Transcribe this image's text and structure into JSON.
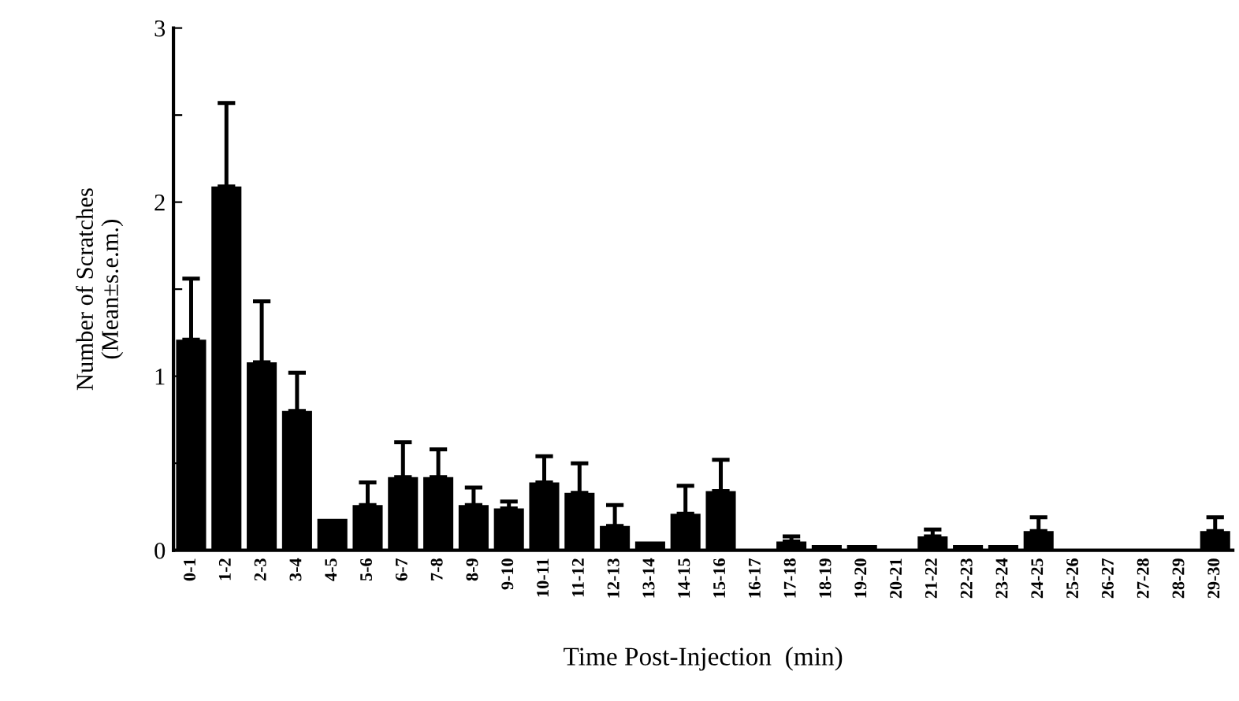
{
  "chart_data": {
    "type": "bar",
    "xlabel": "Time Post-Injection  (min)",
    "ylabel": "Number of Scratches\n(Mean±s.e.m.)",
    "categories": [
      "0-1",
      "1-2",
      "2-3",
      "3-4",
      "4-5",
      "5-6",
      "6-7",
      "7-8",
      "8-9",
      "9-10",
      "10-11",
      "11-12",
      "12-13",
      "13-14",
      "14-15",
      "15-16",
      "16-17",
      "17-18",
      "18-19",
      "19-20",
      "20-21",
      "21-22",
      "22-23",
      "23-24",
      "24-25",
      "25-26",
      "26-27",
      "27-28",
      "28-29",
      "29-30"
    ],
    "values": [
      1.21,
      2.09,
      1.08,
      0.8,
      0.18,
      0.26,
      0.42,
      0.42,
      0.26,
      0.24,
      0.39,
      0.33,
      0.14,
      0.05,
      0.21,
      0.34,
      0,
      0.05,
      0.03,
      0.03,
      0,
      0.08,
      0.03,
      0.03,
      0.11,
      0,
      0,
      0,
      0,
      0.11
    ],
    "errors": [
      0.35,
      0.48,
      0.35,
      0.22,
      null,
      0.13,
      0.2,
      0.16,
      0.1,
      0.04,
      0.15,
      0.17,
      0.12,
      null,
      0.16,
      0.18,
      null,
      0.03,
      null,
      null,
      null,
      0.04,
      null,
      null,
      0.08,
      null,
      null,
      null,
      null,
      0.08
    ],
    "color": "#000000",
    "ylim": [
      0,
      3
    ],
    "yticks": [
      0,
      {
        "value": 0.5,
        "label": null
      },
      1,
      {
        "value": 1.5,
        "label": null
      },
      2,
      {
        "value": 2.5,
        "label": null
      },
      3
    ],
    "grid": false,
    "legend": false
  }
}
